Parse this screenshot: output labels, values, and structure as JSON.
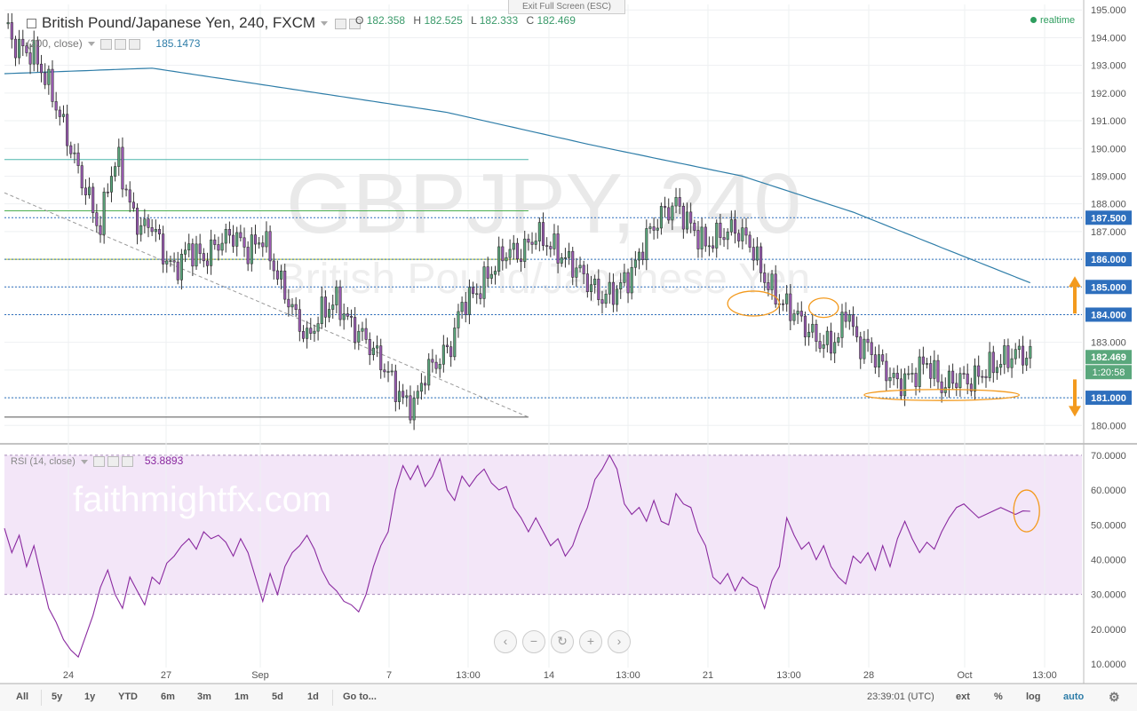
{
  "header": {
    "title": "British Pound/Japanese Yen, 240, FXCM",
    "ohlc": [
      {
        "key": "O",
        "value": "182.358"
      },
      {
        "key": "H",
        "value": "182.525"
      },
      {
        "key": "L",
        "value": "182.333"
      },
      {
        "key": "C",
        "value": "182.469"
      }
    ],
    "ma_label": "(200, close)",
    "ma_value": "185.1473",
    "exit_fullscreen": "Exit Full Screen (ESC)",
    "realtime": "realtime"
  },
  "rsi": {
    "label": "RSI (14, close)",
    "value": "53.8893"
  },
  "zoom_buttons": [
    "‹",
    "−",
    "↻",
    "+",
    "›"
  ],
  "toolbar": {
    "ranges": [
      "All",
      "5y",
      "1y",
      "YTD",
      "6m",
      "3m",
      "1m",
      "5d",
      "1d",
      "Go to..."
    ],
    "clock": "23:39:01 (UTC)",
    "right": [
      "ext",
      "%",
      "log",
      "auto"
    ]
  },
  "colors": {
    "up": "#5aa77c",
    "down": "#9c5bb5",
    "ma": "#2e7da8",
    "rsi": "#8a2aa0",
    "level": "#2e6fbd",
    "arrow": "#f39a1e",
    "rsi_band": "#f3e6f8"
  },
  "chart_data": [
    {
      "type": "candlestick",
      "symbol": "GBPJPY, 240",
      "watermark": "GBPJPY, 240",
      "watermark_sub": "British Pound/Japanese Yen",
      "x_tick_labels": [
        "24",
        "27",
        "Sep",
        "7",
        "13:00",
        "14",
        "13:00",
        "21",
        "13:00",
        "28",
        "Oct",
        "13:00"
      ],
      "y_ticks": [
        "195.000",
        "194.000",
        "193.000",
        "192.000",
        "191.000",
        "190.000",
        "189.000",
        "188.000",
        "187.000",
        "186.000",
        "185.000",
        "184.000",
        "183.000",
        "182.000",
        "181.000",
        "180.000"
      ],
      "ylim": [
        179.4,
        195.2
      ],
      "price_labels": [
        {
          "value": 187.5,
          "label": "187.500"
        },
        {
          "value": 186.0,
          "label": "186.000"
        },
        {
          "value": 185.0,
          "label": "185.000"
        },
        {
          "value": 184.0,
          "label": "184.000"
        },
        {
          "value": 181.0,
          "label": "181.000"
        }
      ],
      "last_price": {
        "value": 182.469,
        "label": "182.469",
        "countdown": "1:20:58"
      },
      "close_path": [
        [
          0,
          194.5
        ],
        [
          3,
          193.7
        ],
        [
          8,
          193.4
        ],
        [
          12,
          192.3
        ],
        [
          16,
          190.8
        ],
        [
          20,
          189.2
        ],
        [
          24,
          187.8
        ],
        [
          26,
          187.0
        ],
        [
          28,
          188.8
        ],
        [
          31,
          189.6
        ],
        [
          34,
          187.9
        ],
        [
          37,
          187.1
        ],
        [
          40,
          187.3
        ],
        [
          43,
          186.2
        ],
        [
          46,
          185.6
        ],
        [
          50,
          186.4
        ],
        [
          54,
          186.0
        ],
        [
          58,
          186.6
        ],
        [
          62,
          186.9
        ],
        [
          66,
          186.3
        ],
        [
          70,
          186.8
        ],
        [
          74,
          185.4
        ],
        [
          78,
          184.2
        ],
        [
          82,
          183.1
        ],
        [
          86,
          184.1
        ],
        [
          90,
          184.5
        ],
        [
          94,
          183.6
        ],
        [
          98,
          183.1
        ],
        [
          102,
          182.3
        ],
        [
          105,
          181.6
        ],
        [
          108,
          180.9
        ],
        [
          111,
          180.7
        ],
        [
          114,
          181.9
        ],
        [
          118,
          182.4
        ],
        [
          121,
          182.9
        ],
        [
          124,
          184.4
        ],
        [
          128,
          184.8
        ],
        [
          132,
          185.6
        ],
        [
          136,
          186.3
        ],
        [
          140,
          186.2
        ],
        [
          144,
          186.9
        ],
        [
          148,
          186.5
        ],
        [
          152,
          186.0
        ],
        [
          155,
          185.7
        ],
        [
          158,
          185.2
        ],
        [
          162,
          184.6
        ],
        [
          166,
          184.9
        ],
        [
          170,
          185.5
        ],
        [
          174,
          186.8
        ],
        [
          178,
          187.6
        ],
        [
          182,
          188.0
        ],
        [
          186,
          187.2
        ],
        [
          190,
          186.5
        ],
        [
          194,
          186.9
        ],
        [
          198,
          187.1
        ],
        [
          202,
          186.6
        ],
        [
          206,
          185.3
        ],
        [
          210,
          184.5
        ],
        [
          214,
          184.1
        ],
        [
          218,
          183.4
        ],
        [
          222,
          182.9
        ],
        [
          226,
          183.1
        ],
        [
          228,
          184.3
        ],
        [
          231,
          183.0
        ],
        [
          234,
          182.8
        ],
        [
          238,
          182.1
        ],
        [
          242,
          181.5
        ],
        [
          246,
          181.8
        ],
        [
          250,
          182.3
        ],
        [
          254,
          181.4
        ],
        [
          258,
          181.7
        ],
        [
          262,
          181.6
        ],
        [
          266,
          182.0
        ],
        [
          270,
          182.3
        ],
        [
          274,
          182.6
        ],
        [
          278,
          182.5
        ]
      ],
      "moving_average_200": [
        [
          0,
          192.7
        ],
        [
          40,
          192.9
        ],
        [
          80,
          192.1
        ],
        [
          120,
          191.3
        ],
        [
          160,
          190.1
        ],
        [
          200,
          189.0
        ],
        [
          230,
          187.7
        ],
        [
          260,
          186.1
        ],
        [
          278,
          185.15
        ]
      ],
      "trendline": [
        [
          0,
          188.4
        ],
        [
          142,
          180.3
        ]
      ],
      "support_lines": [
        {
          "value": 189.6,
          "color": "#4db6ac",
          "x_end": 142
        },
        {
          "value": 187.75,
          "color": "#4caf50",
          "x_end": 142
        },
        {
          "value": 186.0,
          "color": "#b9c42a",
          "x_end": 142
        },
        {
          "value": 180.3,
          "color": "#555555",
          "x_end": 142
        }
      ],
      "highlight_ellipses": [
        {
          "x": 203,
          "y": 184.4,
          "rx": 7,
          "ry": 0.45
        },
        {
          "x": 222,
          "y": 184.25,
          "rx": 4,
          "ry": 0.35
        },
        {
          "x": 254,
          "y": 181.1,
          "rx": 21,
          "ry": 0.2
        }
      ],
      "arrows": [
        {
          "direction": "up",
          "at": 185.0
        },
        {
          "direction": "down",
          "at": 180.7
        }
      ]
    },
    {
      "type": "line",
      "name": "RSI",
      "ylim": [
        9,
        72
      ],
      "y_ticks": [
        "70.0000",
        "60.0000",
        "50.0000",
        "40.0000",
        "30.0000",
        "20.0000",
        "10.0000"
      ],
      "band": [
        30,
        70
      ],
      "values": [
        [
          0,
          49
        ],
        [
          2,
          42
        ],
        [
          4,
          47
        ],
        [
          6,
          38
        ],
        [
          8,
          44
        ],
        [
          10,
          35
        ],
        [
          12,
          26
        ],
        [
          14,
          22
        ],
        [
          16,
          17
        ],
        [
          18,
          14
        ],
        [
          20,
          12
        ],
        [
          22,
          18
        ],
        [
          24,
          24
        ],
        [
          26,
          32
        ],
        [
          28,
          37
        ],
        [
          30,
          30
        ],
        [
          32,
          26
        ],
        [
          34,
          35
        ],
        [
          36,
          31
        ],
        [
          38,
          27
        ],
        [
          40,
          35
        ],
        [
          42,
          33
        ],
        [
          44,
          39
        ],
        [
          46,
          41
        ],
        [
          48,
          44
        ],
        [
          50,
          46
        ],
        [
          52,
          43
        ],
        [
          54,
          48
        ],
        [
          56,
          46
        ],
        [
          58,
          47
        ],
        [
          60,
          45
        ],
        [
          62,
          41
        ],
        [
          64,
          46
        ],
        [
          66,
          42
        ],
        [
          68,
          35
        ],
        [
          70,
          28
        ],
        [
          72,
          36
        ],
        [
          74,
          30
        ],
        [
          76,
          38
        ],
        [
          78,
          42
        ],
        [
          80,
          44
        ],
        [
          82,
          47
        ],
        [
          84,
          43
        ],
        [
          86,
          37
        ],
        [
          88,
          33
        ],
        [
          90,
          31
        ],
        [
          92,
          28
        ],
        [
          94,
          27
        ],
        [
          96,
          25
        ],
        [
          98,
          30
        ],
        [
          100,
          38
        ],
        [
          102,
          44
        ],
        [
          104,
          48
        ],
        [
          106,
          60
        ],
        [
          108,
          67
        ],
        [
          110,
          63
        ],
        [
          112,
          67
        ],
        [
          114,
          61
        ],
        [
          116,
          64
        ],
        [
          118,
          69
        ],
        [
          120,
          60
        ],
        [
          122,
          57
        ],
        [
          124,
          64
        ],
        [
          126,
          61
        ],
        [
          128,
          64
        ],
        [
          130,
          66
        ],
        [
          132,
          62
        ],
        [
          134,
          60
        ],
        [
          136,
          61
        ],
        [
          138,
          55
        ],
        [
          140,
          52
        ],
        [
          142,
          48
        ],
        [
          144,
          52
        ],
        [
          146,
          48
        ],
        [
          148,
          44
        ],
        [
          150,
          46
        ],
        [
          152,
          41
        ],
        [
          154,
          44
        ],
        [
          156,
          50
        ],
        [
          158,
          55
        ],
        [
          160,
          63
        ],
        [
          162,
          66
        ],
        [
          164,
          70
        ],
        [
          166,
          66
        ],
        [
          168,
          56
        ],
        [
          170,
          53
        ],
        [
          172,
          55
        ],
        [
          174,
          51
        ],
        [
          176,
          57
        ],
        [
          178,
          51
        ],
        [
          180,
          50
        ],
        [
          182,
          59
        ],
        [
          184,
          56
        ],
        [
          186,
          55
        ],
        [
          188,
          48
        ],
        [
          190,
          44
        ],
        [
          192,
          35
        ],
        [
          194,
          33
        ],
        [
          196,
          36
        ],
        [
          198,
          31
        ],
        [
          200,
          35
        ],
        [
          202,
          33
        ],
        [
          204,
          32
        ],
        [
          206,
          26
        ],
        [
          208,
          34
        ],
        [
          210,
          38
        ],
        [
          212,
          52
        ],
        [
          214,
          47
        ],
        [
          216,
          43
        ],
        [
          218,
          45
        ],
        [
          220,
          40
        ],
        [
          222,
          44
        ],
        [
          224,
          38
        ],
        [
          226,
          35
        ],
        [
          228,
          33
        ],
        [
          230,
          41
        ],
        [
          232,
          39
        ],
        [
          234,
          42
        ],
        [
          236,
          37
        ],
        [
          238,
          44
        ],
        [
          240,
          38
        ],
        [
          242,
          46
        ],
        [
          244,
          51
        ],
        [
          246,
          46
        ],
        [
          248,
          42
        ],
        [
          250,
          45
        ],
        [
          252,
          43
        ],
        [
          254,
          48
        ],
        [
          256,
          52
        ],
        [
          258,
          55
        ],
        [
          260,
          56
        ],
        [
          262,
          54
        ],
        [
          264,
          52
        ],
        [
          266,
          53
        ],
        [
          268,
          54
        ],
        [
          270,
          55
        ],
        [
          272,
          54
        ],
        [
          274,
          53
        ],
        [
          276,
          54
        ],
        [
          278,
          53.9
        ]
      ],
      "watermark": "faithmightfx.com",
      "highlight_ellipse": {
        "x": 277,
        "y": 54,
        "rx": 3.5,
        "ry": 6
      }
    }
  ]
}
